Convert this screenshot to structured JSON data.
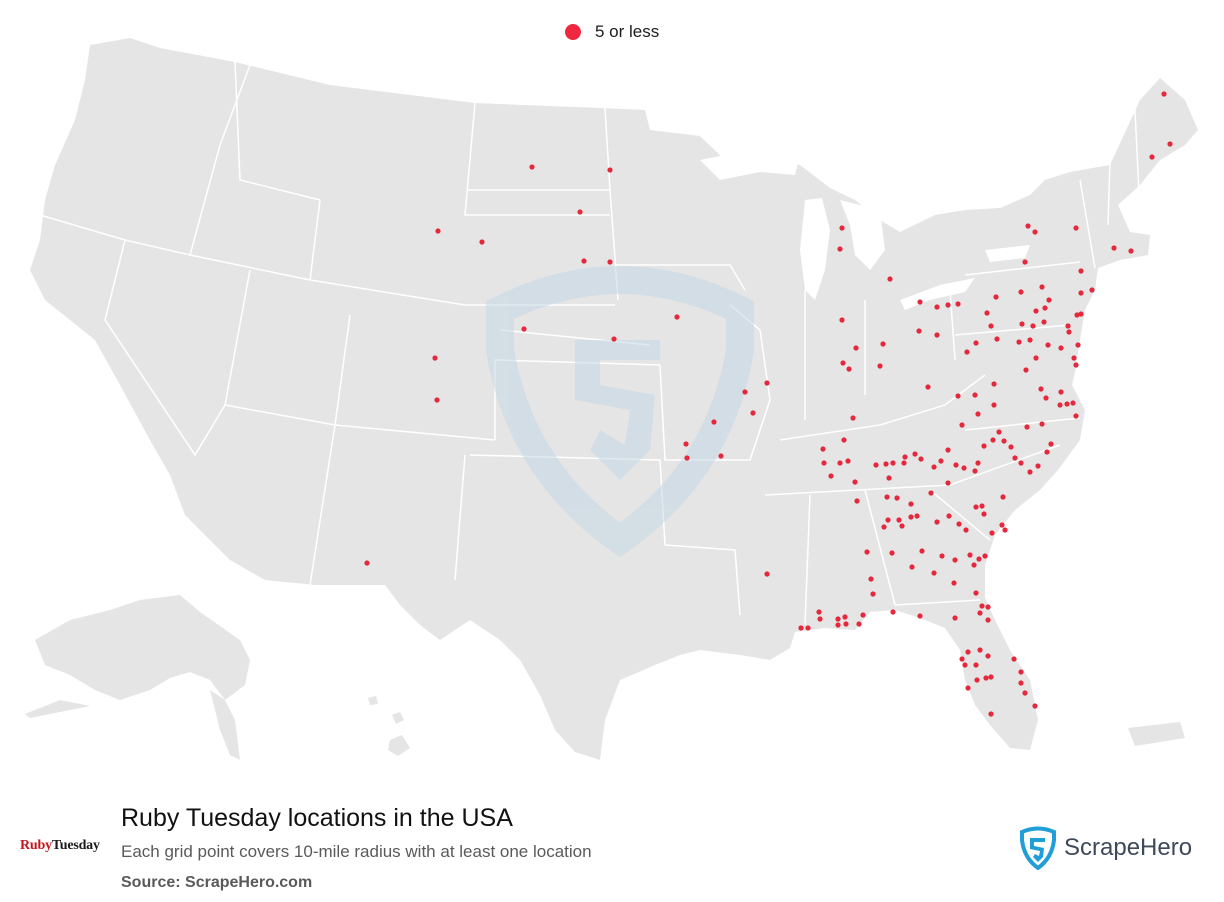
{
  "legend": {
    "label": "5 or less",
    "color": "#f0283f"
  },
  "title": "Ruby Tuesday locations in the USA",
  "subtitle": "Each grid point covers 10-mile radius with at least one location",
  "source": "Source: ScrapeHero.com",
  "brand_logo": {
    "part1": "Ruby",
    "part2": "Tuesday",
    "color": "#c4161c"
  },
  "scrapehero_logo": {
    "text": "ScrapeHero",
    "color": "#1f9ed8"
  },
  "map": {
    "land_color": "#e5e5e5",
    "border_color": "#ffffff",
    "watermark_color": "#c5d8e5",
    "point_color": "#e6283d",
    "points": [
      [
        1164,
        94
      ],
      [
        1170,
        144
      ],
      [
        1152,
        157
      ],
      [
        1028,
        226
      ],
      [
        1035,
        232
      ],
      [
        1076,
        228
      ],
      [
        1114,
        248
      ],
      [
        1131,
        251
      ],
      [
        1025,
        262
      ],
      [
        1081,
        271
      ],
      [
        1092,
        290
      ],
      [
        1081,
        293
      ],
      [
        1021,
        292
      ],
      [
        1042,
        287
      ],
      [
        1049,
        300
      ],
      [
        1045,
        308
      ],
      [
        1036,
        311
      ],
      [
        996,
        297
      ],
      [
        987,
        313
      ],
      [
        991,
        326
      ],
      [
        1022,
        324
      ],
      [
        1044,
        322
      ],
      [
        1033,
        326
      ],
      [
        1077,
        315
      ],
      [
        1081,
        314
      ],
      [
        1068,
        326
      ],
      [
        1069,
        332
      ],
      [
        1019,
        342
      ],
      [
        1030,
        340
      ],
      [
        976,
        343
      ],
      [
        967,
        352
      ],
      [
        997,
        339
      ],
      [
        1048,
        345
      ],
      [
        1061,
        348
      ],
      [
        1078,
        345
      ],
      [
        1074,
        358
      ],
      [
        1076,
        365
      ],
      [
        1036,
        358
      ],
      [
        1026,
        370
      ],
      [
        920,
        302
      ],
      [
        937,
        307
      ],
      [
        948,
        305
      ],
      [
        958,
        304
      ],
      [
        937,
        335
      ],
      [
        919,
        331
      ],
      [
        890,
        279
      ],
      [
        842,
        228
      ],
      [
        840,
        249
      ],
      [
        842,
        320
      ],
      [
        856,
        348
      ],
      [
        843,
        363
      ],
      [
        849,
        369
      ],
      [
        883,
        344
      ],
      [
        880,
        366
      ],
      [
        928,
        387
      ],
      [
        958,
        396
      ],
      [
        975,
        395
      ],
      [
        994,
        384
      ],
      [
        1041,
        389
      ],
      [
        1046,
        398
      ],
      [
        1061,
        392
      ],
      [
        1060,
        405
      ],
      [
        1067,
        404
      ],
      [
        1073,
        403
      ],
      [
        1076,
        416
      ],
      [
        994,
        405
      ],
      [
        978,
        414
      ],
      [
        962,
        425
      ],
      [
        1027,
        427
      ],
      [
        1042,
        424
      ],
      [
        1051,
        444
      ],
      [
        999,
        432
      ],
      [
        993,
        440
      ],
      [
        1004,
        441
      ],
      [
        984,
        446
      ],
      [
        1011,
        447
      ],
      [
        853,
        418
      ],
      [
        844,
        440
      ],
      [
        823,
        449
      ],
      [
        824,
        463
      ],
      [
        840,
        463
      ],
      [
        848,
        461
      ],
      [
        831,
        476
      ],
      [
        855,
        482
      ],
      [
        876,
        465
      ],
      [
        886,
        464
      ],
      [
        893,
        463
      ],
      [
        905,
        457
      ],
      [
        915,
        454
      ],
      [
        904,
        463
      ],
      [
        921,
        459
      ],
      [
        934,
        467
      ],
      [
        941,
        461
      ],
      [
        948,
        450
      ],
      [
        956,
        465
      ],
      [
        964,
        468
      ],
      [
        978,
        463
      ],
      [
        975,
        471
      ],
      [
        1015,
        458
      ],
      [
        1021,
        463
      ],
      [
        1038,
        466
      ],
      [
        1047,
        452
      ],
      [
        1030,
        472
      ],
      [
        889,
        478
      ],
      [
        887,
        497
      ],
      [
        897,
        498
      ],
      [
        931,
        493
      ],
      [
        948,
        483
      ],
      [
        857,
        501
      ],
      [
        911,
        504
      ],
      [
        976,
        507
      ],
      [
        982,
        506
      ],
      [
        984,
        514
      ],
      [
        1003,
        497
      ],
      [
        1002,
        525
      ],
      [
        1005,
        530
      ],
      [
        992,
        533
      ],
      [
        884,
        527
      ],
      [
        888,
        520
      ],
      [
        899,
        520
      ],
      [
        902,
        526
      ],
      [
        911,
        517
      ],
      [
        917,
        516
      ],
      [
        937,
        522
      ],
      [
        949,
        516
      ],
      [
        959,
        524
      ],
      [
        966,
        530
      ],
      [
        867,
        552
      ],
      [
        892,
        553
      ],
      [
        922,
        551
      ],
      [
        942,
        556
      ],
      [
        955,
        560
      ],
      [
        970,
        555
      ],
      [
        979,
        559
      ],
      [
        985,
        556
      ],
      [
        912,
        567
      ],
      [
        934,
        573
      ],
      [
        954,
        583
      ],
      [
        974,
        565
      ],
      [
        976,
        593
      ],
      [
        871,
        579
      ],
      [
        873,
        594
      ],
      [
        920,
        616
      ],
      [
        893,
        612
      ],
      [
        819,
        612
      ],
      [
        820,
        619
      ],
      [
        838,
        619
      ],
      [
        845,
        617
      ],
      [
        846,
        624
      ],
      [
        838,
        625
      ],
      [
        859,
        624
      ],
      [
        863,
        615
      ],
      [
        801,
        628
      ],
      [
        808,
        628
      ],
      [
        767,
        574
      ],
      [
        982,
        606
      ],
      [
        988,
        607
      ],
      [
        980,
        613
      ],
      [
        988,
        620
      ],
      [
        955,
        618
      ],
      [
        968,
        652
      ],
      [
        962,
        659
      ],
      [
        965,
        665
      ],
      [
        976,
        665
      ],
      [
        980,
        650
      ],
      [
        988,
        656
      ],
      [
        977,
        680
      ],
      [
        968,
        688
      ],
      [
        986,
        678
      ],
      [
        991,
        677
      ],
      [
        1014,
        659
      ],
      [
        1021,
        672
      ],
      [
        1021,
        683
      ],
      [
        1025,
        693
      ],
      [
        1035,
        706
      ],
      [
        991,
        714
      ],
      [
        532,
        167
      ],
      [
        610,
        170
      ],
      [
        580,
        212
      ],
      [
        584,
        261
      ],
      [
        610,
        262
      ],
      [
        482,
        242
      ],
      [
        438,
        231
      ],
      [
        524,
        329
      ],
      [
        614,
        339
      ],
      [
        677,
        317
      ],
      [
        435,
        358
      ],
      [
        437,
        400
      ],
      [
        367,
        563
      ],
      [
        767,
        383
      ],
      [
        745,
        392
      ],
      [
        753,
        413
      ],
      [
        714,
        422
      ],
      [
        686,
        444
      ],
      [
        687,
        458
      ],
      [
        721,
        456
      ]
    ]
  }
}
